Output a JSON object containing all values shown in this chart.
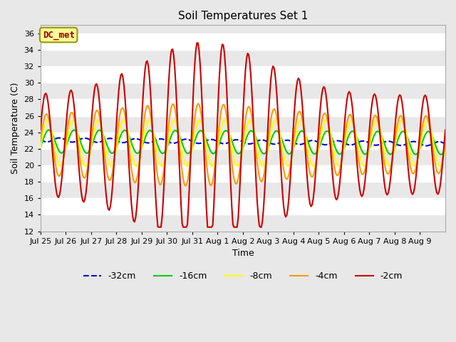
{
  "title": "Soil Temperatures Set 1",
  "xlabel": "Time",
  "ylabel": "Soil Temperature (C)",
  "ylim": [
    12,
    37
  ],
  "yticks": [
    12,
    14,
    16,
    18,
    20,
    22,
    24,
    26,
    28,
    30,
    32,
    34,
    36
  ],
  "xtick_labels": [
    "Jul 25",
    "Jul 26",
    "Jul 27",
    "Jul 28",
    "Jul 29",
    "Jul 30",
    "Jul 31",
    "Aug 1",
    "Aug 2",
    "Aug 3",
    "Aug 4",
    "Aug 5",
    "Aug 6",
    "Aug 7",
    "Aug 8",
    "Aug 9"
  ],
  "n_days": 16,
  "n_per_day": 24,
  "bg_color": "#e8e8e8",
  "stripe_color": "#ffffff",
  "annotation_text": "DC_met",
  "annotation_bg": "#ffff99",
  "annotation_fg": "#990000",
  "series": [
    {
      "label": "-32cm",
      "color": "#0000cc",
      "lw": 1.5,
      "ls": "--"
    },
    {
      "label": "-16cm",
      "color": "#00cc00",
      "lw": 1.5,
      "ls": "-"
    },
    {
      "label": "-8cm",
      "color": "#ffff00",
      "lw": 1.5,
      "ls": "-"
    },
    {
      "label": "-4cm",
      "color": "#ff9900",
      "lw": 1.5,
      "ls": "-"
    },
    {
      "label": "-2cm",
      "color": "#cc0000",
      "lw": 1.5,
      "ls": "-"
    }
  ]
}
